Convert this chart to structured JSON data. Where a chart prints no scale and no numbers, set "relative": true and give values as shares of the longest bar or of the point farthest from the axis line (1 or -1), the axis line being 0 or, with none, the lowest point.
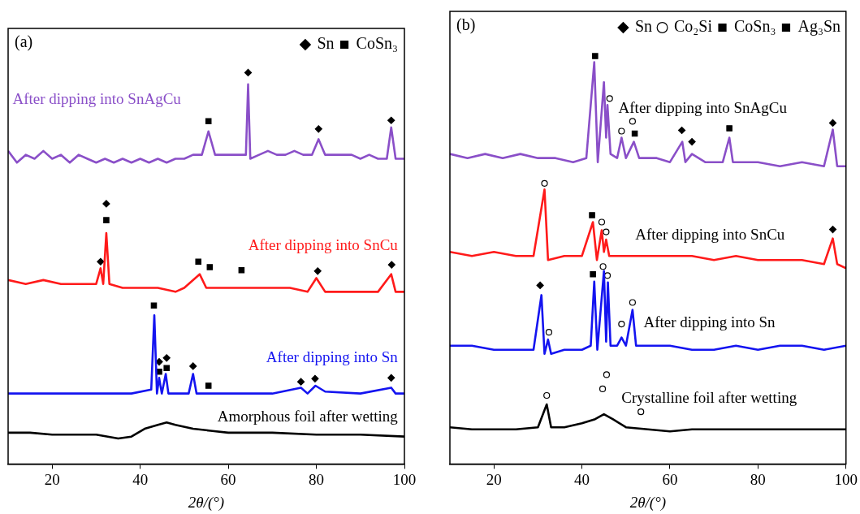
{
  "chart_data": [
    {
      "type": "line",
      "title": "(a)",
      "xlabel": "2θ/(°)",
      "xlim": [
        10,
        100
      ],
      "xticks": [
        20,
        40,
        60,
        80,
        100
      ],
      "relative": true,
      "grid": false,
      "legend": "top right",
      "series": [
        {
          "name": "After dipping into SnAgCu",
          "type": "line",
          "color": "#8a4fc8",
          "x": [
            10,
            12,
            14,
            16,
            18,
            20,
            22,
            24,
            26,
            28,
            30,
            32,
            34,
            36,
            38,
            40,
            42,
            44,
            46,
            48,
            50,
            52,
            54,
            55.5,
            57,
            59,
            61,
            63,
            64,
            64.5,
            65,
            67,
            69,
            71,
            73,
            75,
            77,
            79,
            80.5,
            82,
            84,
            86,
            88,
            90,
            92,
            94,
            96,
            97,
            98,
            100
          ],
          "values": [
            0.8,
            0.77,
            0.79,
            0.78,
            0.8,
            0.78,
            0.79,
            0.77,
            0.79,
            0.78,
            0.77,
            0.78,
            0.77,
            0.78,
            0.77,
            0.78,
            0.77,
            0.78,
            0.77,
            0.78,
            0.78,
            0.79,
            0.79,
            0.85,
            0.79,
            0.79,
            0.79,
            0.79,
            0.79,
            0.97,
            0.78,
            0.79,
            0.8,
            0.79,
            0.79,
            0.8,
            0.79,
            0.79,
            0.83,
            0.79,
            0.79,
            0.79,
            0.79,
            0.78,
            0.79,
            0.78,
            0.78,
            0.86,
            0.78,
            0.78
          ]
        },
        {
          "name": "After dipping into SnCu",
          "type": "line",
          "color": "#ff1a1a",
          "x": [
            10,
            14,
            18,
            22,
            26,
            30,
            31,
            31.6,
            32.3,
            33,
            36,
            40,
            44,
            48,
            50,
            53.5,
            55,
            58,
            62,
            66,
            70,
            74,
            78,
            80,
            82,
            86,
            90,
            94,
            97,
            98,
            100
          ],
          "values": [
            0.47,
            0.46,
            0.47,
            0.46,
            0.46,
            0.46,
            0.5,
            0.46,
            0.59,
            0.46,
            0.45,
            0.45,
            0.45,
            0.44,
            0.45,
            0.485,
            0.45,
            0.45,
            0.45,
            0.45,
            0.45,
            0.45,
            0.44,
            0.475,
            0.44,
            0.44,
            0.44,
            0.44,
            0.485,
            0.44,
            0.44
          ]
        },
        {
          "name": "After dipping into Sn",
          "type": "line",
          "color": "#1414f0",
          "x": [
            10,
            20,
            30,
            38,
            42.5,
            43.2,
            43.8,
            44.3,
            44.9,
            45.8,
            46.4,
            50,
            51,
            52,
            52.8,
            60,
            70,
            76.5,
            78,
            79.8,
            82,
            90,
            97,
            98,
            100
          ],
          "values": [
            0.18,
            0.18,
            0.18,
            0.18,
            0.19,
            0.38,
            0.18,
            0.22,
            0.18,
            0.23,
            0.18,
            0.18,
            0.18,
            0.23,
            0.18,
            0.18,
            0.18,
            0.195,
            0.18,
            0.2,
            0.185,
            0.18,
            0.195,
            0.18,
            0.18
          ]
        },
        {
          "name": "Amorphous foil after wetting",
          "type": "line",
          "color": "#000000",
          "x": [
            10,
            15,
            20,
            25,
            30,
            35,
            38,
            41,
            44,
            46,
            48,
            52,
            56,
            60,
            70,
            80,
            90,
            100
          ],
          "values": [
            0.08,
            0.08,
            0.075,
            0.075,
            0.075,
            0.065,
            0.07,
            0.09,
            0.1,
            0.106,
            0.1,
            0.09,
            0.085,
            0.08,
            0.08,
            0.075,
            0.075,
            0.07
          ]
        },
        {
          "name": "Sn",
          "type": "scatter",
          "marker": "diamond",
          "color": "#000000",
          "x": [
            64.5,
            80.5,
            97,
            31,
            32.3,
            80.3,
            97.1,
            44.3,
            46,
            52,
            76.5,
            79.7,
            97
          ],
          "values": [
            1.0,
            0.856,
            0.878,
            0.517,
            0.665,
            0.493,
            0.509,
            0.261,
            0.271,
            0.25,
            0.21,
            0.218,
            0.22
          ]
        },
        {
          "name": "CoSn₃",
          "type": "scatter",
          "marker": "square",
          "color": "#000000",
          "x": [
            55.5,
            32.3,
            53.2,
            55.8,
            63,
            43.1,
            44.3,
            46,
            55.5
          ],
          "values": [
            0.876,
            0.623,
            0.517,
            0.503,
            0.495,
            0.405,
            0.236,
            0.245,
            0.2
          ]
        }
      ]
    },
    {
      "type": "line",
      "title": "(b)",
      "xlabel": "2θ/(°)",
      "xlim": [
        10,
        100
      ],
      "xticks": [
        20,
        40,
        60,
        80,
        100
      ],
      "relative": true,
      "grid": false,
      "legend": "top right",
      "series": [
        {
          "name": "After dipping into SnAgCu",
          "type": "line",
          "color": "#8a4fc8",
          "x": [
            10,
            14,
            18,
            22,
            26,
            30,
            34,
            38,
            41,
            42.8,
            43.6,
            45,
            45.5,
            45.8,
            46.5,
            48,
            49,
            50,
            51.8,
            53,
            57,
            60,
            62.8,
            63.5,
            65,
            68,
            72,
            73.5,
            74.3,
            80,
            85,
            90,
            95,
            97,
            98,
            100
          ],
          "values": [
            0.76,
            0.75,
            0.76,
            0.75,
            0.76,
            0.75,
            0.75,
            0.74,
            0.75,
            0.985,
            0.74,
            0.936,
            0.8,
            0.88,
            0.76,
            0.75,
            0.8,
            0.75,
            0.79,
            0.75,
            0.75,
            0.74,
            0.79,
            0.74,
            0.76,
            0.74,
            0.74,
            0.8,
            0.74,
            0.74,
            0.73,
            0.74,
            0.73,
            0.82,
            0.73,
            0.73
          ]
        },
        {
          "name": "After dipping into SnCu",
          "type": "line",
          "color": "#ff1a1a",
          "x": [
            10,
            15,
            20,
            25,
            29,
            31.5,
            32.3,
            36,
            40,
            42.5,
            43.4,
            44.5,
            45,
            45.5,
            46.2,
            50,
            55,
            60,
            65,
            70,
            75,
            80,
            85,
            90,
            95,
            97,
            98,
            100
          ],
          "values": [
            0.52,
            0.51,
            0.52,
            0.51,
            0.51,
            0.673,
            0.5,
            0.51,
            0.51,
            0.593,
            0.5,
            0.573,
            0.52,
            0.55,
            0.51,
            0.51,
            0.51,
            0.51,
            0.51,
            0.5,
            0.51,
            0.5,
            0.5,
            0.5,
            0.49,
            0.553,
            0.49,
            0.48
          ]
        },
        {
          "name": "After dipping into Sn",
          "type": "line",
          "color": "#1414f0",
          "x": [
            10,
            15,
            20,
            25,
            29,
            30.8,
            31.5,
            32.3,
            33,
            36,
            40,
            42,
            42.8,
            43.5,
            45,
            45.5,
            45.9,
            46.5,
            48,
            49,
            50,
            51.5,
            52.3,
            56,
            60,
            65,
            70,
            75,
            80,
            85,
            90,
            95,
            100
          ],
          "values": [
            0.29,
            0.29,
            0.28,
            0.28,
            0.28,
            0.414,
            0.27,
            0.305,
            0.27,
            0.28,
            0.28,
            0.29,
            0.447,
            0.28,
            0.473,
            0.3,
            0.445,
            0.29,
            0.29,
            0.31,
            0.29,
            0.378,
            0.29,
            0.29,
            0.29,
            0.28,
            0.28,
            0.29,
            0.28,
            0.29,
            0.29,
            0.28,
            0.29
          ]
        },
        {
          "name": "Crystalline foil after wetting",
          "type": "line",
          "color": "#000000",
          "x": [
            10,
            15,
            20,
            25,
            30,
            32,
            33,
            36,
            40,
            43,
            45,
            47,
            50,
            55,
            60,
            65,
            70,
            80,
            90,
            100
          ],
          "values": [
            0.09,
            0.085,
            0.085,
            0.085,
            0.09,
            0.146,
            0.09,
            0.09,
            0.1,
            0.11,
            0.122,
            0.11,
            0.09,
            0.085,
            0.08,
            0.085,
            0.085,
            0.085,
            0.085,
            0.085
          ]
        },
        {
          "name": "Sn",
          "type": "scatter",
          "marker": "diamond",
          "color": "#000000",
          "x": [
            62.7,
            65,
            97,
            97,
            30.5
          ],
          "values": [
            0.818,
            0.79,
            0.836,
            0.575,
            0.438
          ]
        },
        {
          "name": "CoSn₃",
          "type": "scatter",
          "marker": "square",
          "color": "#000000",
          "x": [
            43,
            42.3,
            42.5
          ],
          "values": [
            1.0,
            0.61,
            0.465
          ]
        },
        {
          "name": "Co₂Si",
          "type": "scatter",
          "marker": "circle",
          "color": "#000000",
          "x": [
            46.3,
            49,
            51.5,
            31.5,
            44.5,
            45.5,
            32.5,
            44.8,
            45.8,
            49,
            51.5,
            32,
            44.7,
            45.6,
            53.4
          ],
          "values": [
            0.896,
            0.816,
            0.84,
            0.688,
            0.593,
            0.569,
            0.323,
            0.484,
            0.462,
            0.343,
            0.396,
            0.168,
            0.184,
            0.219,
            0.128
          ]
        },
        {
          "name": "Ag₃Sn",
          "type": "scatter",
          "marker": "square",
          "color": "#000000",
          "x": [
            52,
            73.5
          ],
          "values": [
            0.81,
            0.823
          ]
        }
      ]
    }
  ]
}
